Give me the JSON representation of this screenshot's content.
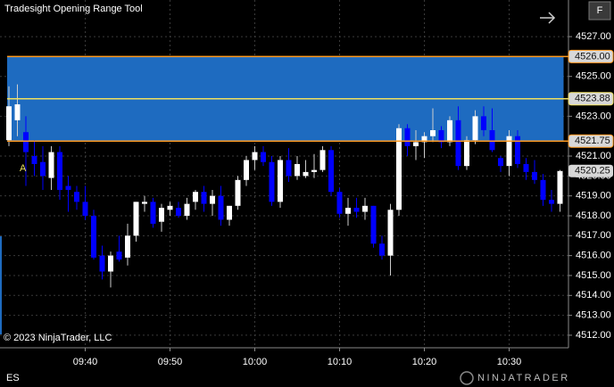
{
  "chart_data": {
    "type": "candlestick",
    "title": "Tradesight Opening Range Tool",
    "categories": [
      null,
      null,
      null,
      null,
      null,
      null,
      null,
      null,
      null,
      "09:40",
      null,
      null,
      null,
      null,
      null,
      null,
      null,
      null,
      null,
      "09:50",
      null,
      null,
      null,
      null,
      null,
      null,
      null,
      null,
      null,
      "10:00",
      null,
      null,
      null,
      null,
      null,
      null,
      null,
      null,
      null,
      "10:10",
      null,
      null,
      null,
      null,
      null,
      null,
      null,
      null,
      null,
      "10:20",
      null,
      null,
      null,
      null,
      null,
      null,
      null,
      null,
      null,
      "10:30",
      null,
      null,
      null,
      null,
      null,
      null
    ],
    "open": [
      4521.8,
      4522.8,
      4522.2,
      4521.0,
      4520.7,
      4519.9,
      4521.2,
      4519.5,
      4519.2,
      4518.7,
      4518.0,
      4516.0,
      4515.2,
      4516.2,
      4515.9,
      4517.0,
      4518.6,
      4518.7,
      4517.7,
      4518.3,
      4518.4,
      4518.0,
      4518.7,
      4519.2,
      4518.6,
      4519.0,
      4517.8,
      4518.5,
      4519.8,
      4520.8,
      4521.2,
      4520.7,
      4518.7,
      4520.8,
      4520.0,
      4520.0,
      4520.2,
      4520.3,
      4521.3,
      4519.2,
      4518.1,
      4518.4,
      4518.2,
      4518.5,
      4516.6,
      4516.0,
      4518.3,
      4522.4,
      4521.5,
      4521.7,
      4522.0,
      4522.3,
      4521.7,
      4522.8,
      4520.5,
      4521.8,
      4523.0,
      4522.3,
      4520.9,
      4520.5,
      4522.0,
      4520.6,
      4520.2,
      4519.8,
      4518.8,
      4518.6
    ],
    "high": [
      4524.5,
      4524.6,
      4523.0,
      4521.8,
      4521.5,
      4521.5,
      4521.5,
      4520.0,
      4519.5,
      4519.5,
      4518.3,
      4516.5,
      4516.2,
      4517.0,
      4517.6,
      4518.7,
      4519.0,
      4518.9,
      4518.6,
      4518.7,
      4518.7,
      4518.9,
      4519.3,
      4519.5,
      4519.3,
      4519.5,
      4518.5,
      4520.0,
      4521.0,
      4521.5,
      4521.5,
      4521.0,
      4521.0,
      4521.4,
      4521.0,
      4520.8,
      4521.1,
      4521.5,
      4521.5,
      4519.4,
      4518.9,
      4518.9,
      4518.9,
      4518.5,
      4517.0,
      4518.6,
      4522.6,
      4522.6,
      4522.3,
      4522.2,
      4523.4,
      4522.5,
      4523.0,
      4523.5,
      4522.0,
      4523.3,
      4523.5,
      4523.4,
      4521.0,
      4522.3,
      4522.3,
      4520.9,
      4520.8,
      4520.1,
      4519.3,
      4520.3
    ],
    "low": [
      4521.5,
      4522.0,
      4519.5,
      4520.0,
      4519.3,
      4519.3,
      4518.8,
      4518.2,
      4518.3,
      4517.8,
      4515.8,
      4514.8,
      4514.4,
      4515.7,
      4515.5,
      4516.7,
      4518.2,
      4517.4,
      4517.2,
      4518.0,
      4517.9,
      4517.8,
      4518.3,
      4518.2,
      4518.0,
      4517.5,
      4517.5,
      4518.3,
      4519.5,
      4520.3,
      4520.5,
      4518.5,
      4518.4,
      4519.7,
      4519.8,
      4519.9,
      4519.9,
      4520.2,
      4519.0,
      4517.9,
      4517.5,
      4517.9,
      4517.8,
      4516.4,
      4515.8,
      4515.0,
      4518.0,
      4521.0,
      4520.8,
      4520.9,
      4521.7,
      4521.4,
      4521.5,
      4520.3,
      4520.3,
      4521.6,
      4522.0,
      4521.2,
      4520.2,
      4520.0,
      4520.4,
      4519.8,
      4519.6,
      4518.5,
      4518.2,
      4518.2
    ],
    "close": [
      4523.5,
      4523.6,
      4521.2,
      4520.6,
      4520.0,
      4521.2,
      4519.3,
      4519.3,
      4518.7,
      4518.0,
      4515.9,
      4515.2,
      4516.0,
      4515.8,
      4517.0,
      4518.7,
      4518.7,
      4517.6,
      4518.4,
      4518.5,
      4518.0,
      4518.6,
      4519.2,
      4518.6,
      4519.0,
      4517.8,
      4518.5,
      4519.8,
      4520.8,
      4521.2,
      4520.7,
      4518.7,
      4520.8,
      4520.0,
      4520.6,
      4520.2,
      4520.3,
      4521.3,
      4519.2,
      4518.1,
      4518.4,
      4518.2,
      4518.5,
      4516.6,
      4516.0,
      4518.3,
      4522.4,
      4521.5,
      4521.7,
      4522.0,
      4522.3,
      4521.7,
      4522.8,
      4520.5,
      4521.8,
      4523.0,
      4522.3,
      4521.3,
      4520.5,
      4522.0,
      4520.6,
      4520.2,
      4519.8,
      4518.8,
      4518.6,
      4520.25
    ],
    "up_color": "#ffffff",
    "down_color": "#0000ff",
    "ylim": [
      4511.37,
      4528.84
    ],
    "yticks": [
      {
        "value": 4512,
        "label": "4512.00"
      },
      {
        "value": 4513,
        "label": "4513.00"
      },
      {
        "value": 4514,
        "label": "4514.00"
      },
      {
        "value": 4515,
        "label": "4515.00"
      },
      {
        "value": 4516,
        "label": "4516.00"
      },
      {
        "value": 4517,
        "label": "4517.00"
      },
      {
        "value": 4518,
        "label": "4518.00"
      },
      {
        "value": 4519,
        "label": "4519.00"
      },
      {
        "value": 4520,
        "label": "4520.00"
      },
      {
        "value": 4521,
        "label": "4521.00"
      },
      {
        "value": 4523,
        "label": "4523.00"
      },
      {
        "value": 4525,
        "label": "4525.00"
      },
      {
        "value": 4527,
        "label": "4527.00"
      }
    ],
    "grid": true,
    "range_fill": "#1e6bc0",
    "levels": [
      {
        "value": 4526.0,
        "label": "4526.00",
        "color": "#ff9a1e"
      },
      {
        "value": 4523.88,
        "label": "4523.88",
        "color": "#f0e060"
      },
      {
        "value": 4521.75,
        "label": "4521.75",
        "color": "#ff9a1e"
      }
    ],
    "last_price": {
      "value": 4520.25,
      "label": "4520.25"
    },
    "annotation": "A",
    "copyright": "© 2023 NinjaTrader, LLC",
    "instrument": "ES",
    "logo": "NINJATRADER",
    "button": "F"
  }
}
